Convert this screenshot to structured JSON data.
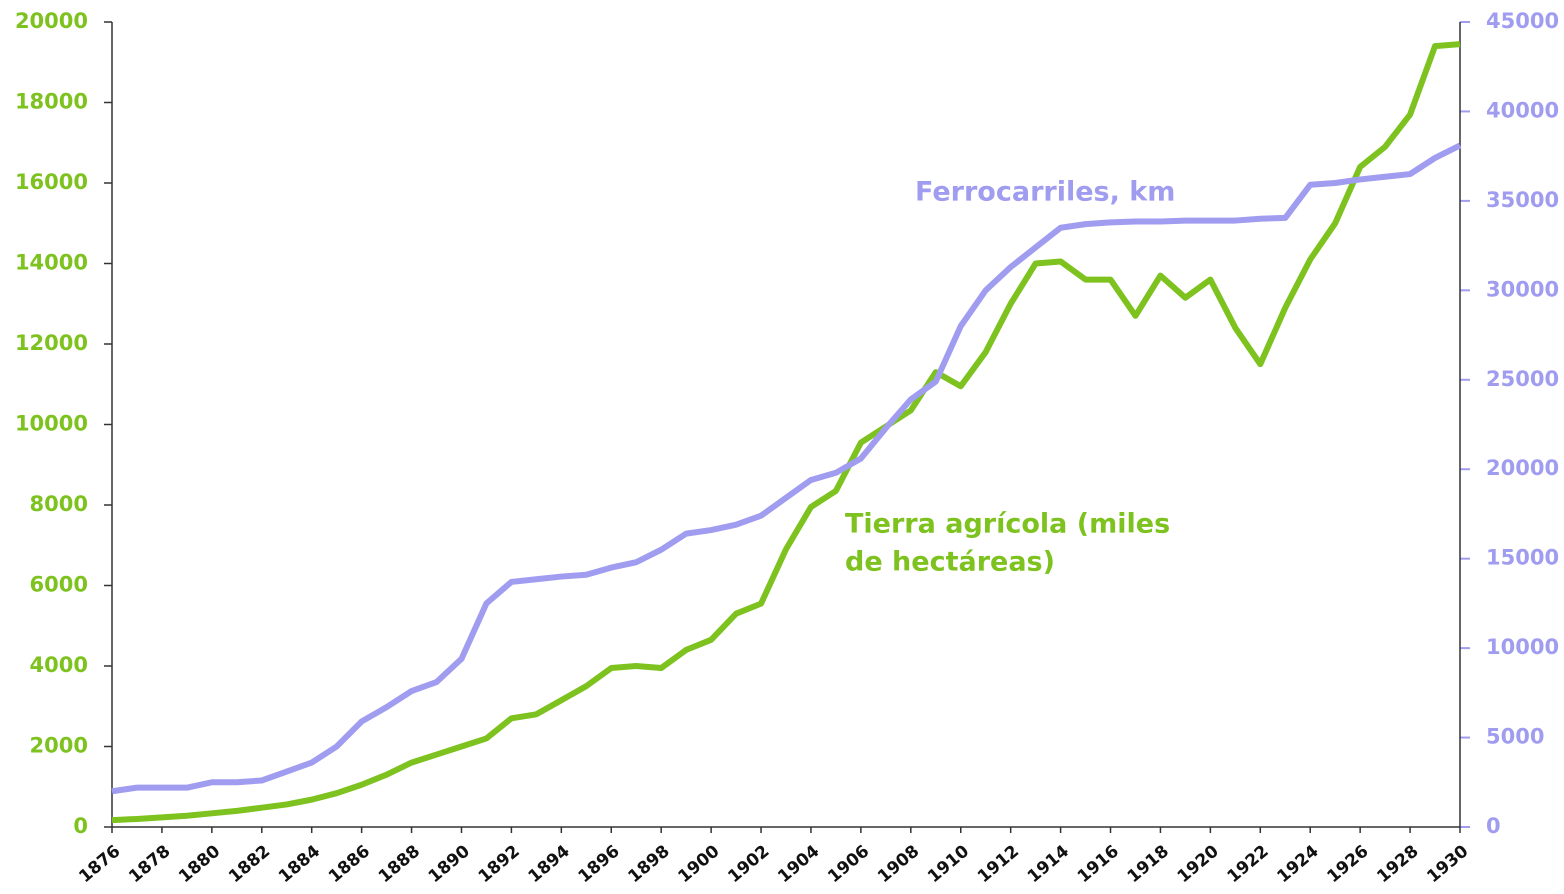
{
  "chart_data": {
    "type": "line",
    "x": [
      1876,
      1877,
      1878,
      1879,
      1880,
      1881,
      1882,
      1883,
      1884,
      1885,
      1886,
      1887,
      1888,
      1889,
      1890,
      1891,
      1892,
      1893,
      1894,
      1895,
      1896,
      1897,
      1898,
      1899,
      1900,
      1901,
      1902,
      1903,
      1904,
      1905,
      1906,
      1907,
      1908,
      1909,
      1910,
      1911,
      1912,
      1913,
      1914,
      1915,
      1916,
      1917,
      1918,
      1919,
      1920,
      1921,
      1922,
      1923,
      1924,
      1925,
      1926,
      1927,
      1928,
      1929,
      1930
    ],
    "xlim": [
      1876,
      1930
    ],
    "xticks": [
      1876,
      1878,
      1880,
      1882,
      1884,
      1886,
      1888,
      1890,
      1892,
      1894,
      1896,
      1898,
      1900,
      1902,
      1904,
      1906,
      1908,
      1910,
      1912,
      1914,
      1916,
      1918,
      1920,
      1922,
      1924,
      1926,
      1928,
      1930
    ],
    "ylim": [
      0,
      20000
    ],
    "yticks": [
      0,
      2000,
      4000,
      6000,
      8000,
      10000,
      12000,
      14000,
      16000,
      18000,
      20000
    ],
    "y2lim": [
      0,
      45000
    ],
    "y2ticks": [
      0,
      5000,
      10000,
      15000,
      20000,
      25000,
      30000,
      35000,
      40000,
      45000
    ],
    "series": [
      {
        "label_lines": [
          "Tierra agrícola (miles",
          "de hectáreas)"
        ],
        "color": "#7dc21e",
        "axis": "y",
        "values": [
          170,
          200,
          240,
          280,
          340,
          400,
          480,
          560,
          680,
          840,
          1050,
          1300,
          1600,
          1800,
          2000,
          2200,
          2700,
          2800,
          3150,
          3500,
          3950,
          4000,
          3950,
          4400,
          4650,
          5300,
          5550,
          6900,
          7950,
          8350,
          9550,
          9950,
          10350,
          11300,
          10950,
          11800,
          13000,
          14000,
          14050,
          13600,
          13600,
          12700,
          13700,
          13150,
          13600,
          12400,
          11500,
          12900,
          14100,
          15000,
          16400,
          16900,
          17700,
          19400,
          19450
        ]
      },
      {
        "label_lines": [
          "Ferrocarriles, km"
        ],
        "color": "#a09cf0",
        "axis": "y2",
        "values": [
          2000,
          2200,
          2200,
          2200,
          2500,
          2500,
          2600,
          3100,
          3600,
          4500,
          5900,
          6700,
          7600,
          8100,
          9400,
          12500,
          13700,
          13850,
          14000,
          14100,
          14500,
          14800,
          15500,
          16400,
          16600,
          16900,
          17400,
          18400,
          19400,
          19800,
          20600,
          22300,
          23900,
          24900,
          28000,
          30000,
          31300,
          32400,
          33500,
          33700,
          33800,
          33850,
          33850,
          33900,
          33900,
          33900,
          34000,
          34050,
          35900,
          36000,
          36200,
          36350,
          36500,
          37400,
          38100
        ]
      }
    ]
  }
}
